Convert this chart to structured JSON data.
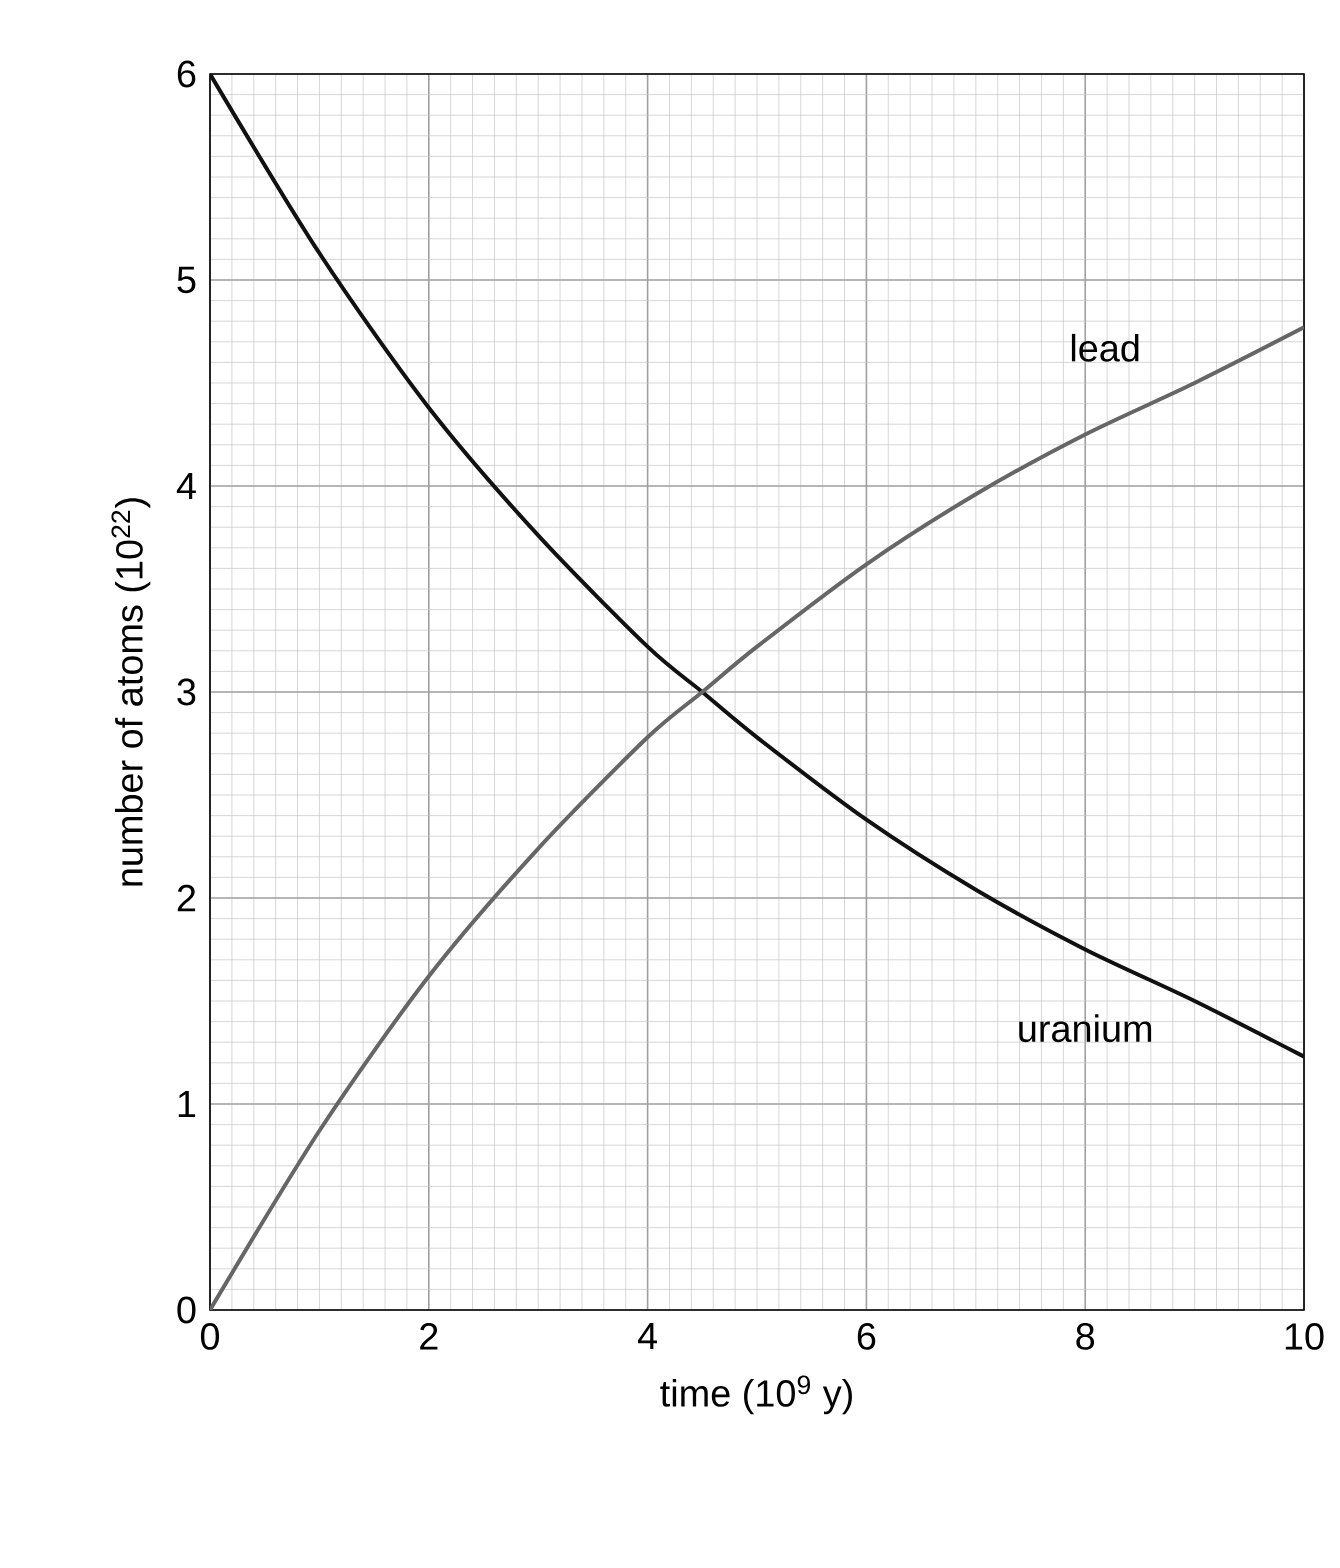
{
  "chart_data": {
    "type": "line",
    "xlabel": "time (10$^{9}$ y)",
    "ylabel": "number of atoms (10$^{22}$)",
    "x": [
      0,
      1,
      2,
      3,
      4,
      4.5,
      5,
      6,
      7,
      8,
      9,
      10
    ],
    "series": [
      {
        "name": "uranium",
        "color": "#111111",
        "values": [
          6,
          5.13,
          4.38,
          3.76,
          3.22,
          3.0,
          2.78,
          2.38,
          2.04,
          1.75,
          1.5,
          1.23
        ]
      },
      {
        "name": "lead",
        "color": "#666666",
        "values": [
          0,
          0.87,
          1.62,
          2.24,
          2.78,
          3.0,
          3.22,
          3.62,
          3.96,
          4.25,
          4.5,
          4.77
        ]
      }
    ],
    "xlim": [
      0,
      10
    ],
    "ylim": [
      0,
      6
    ],
    "xticks": [
      0,
      2,
      4,
      6,
      8,
      10
    ],
    "yticks": [
      0,
      1,
      2,
      3,
      4,
      5,
      6
    ],
    "grid": true,
    "marker": "none",
    "line_style": "solid"
  }
}
